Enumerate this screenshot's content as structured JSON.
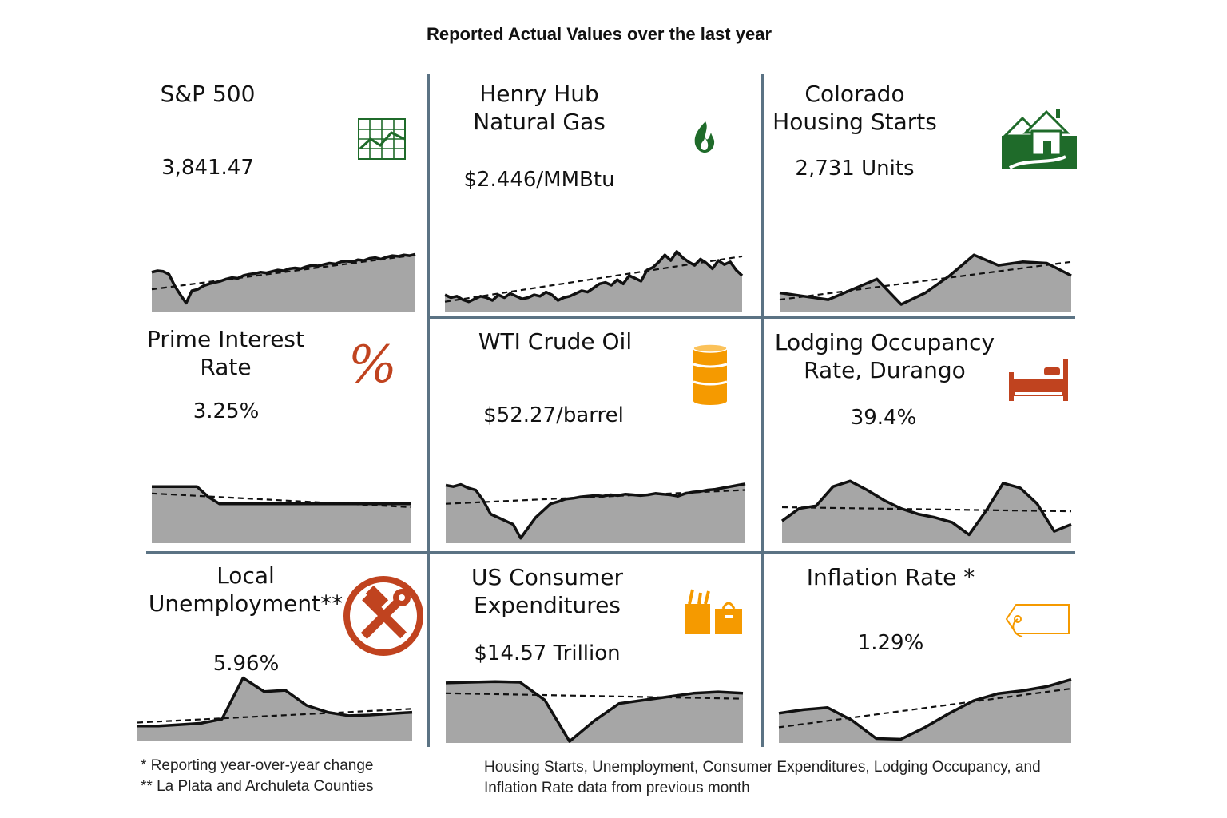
{
  "title": "Reported Actual Values over the last year",
  "colors": {
    "area": "#a6a6a6",
    "line": "#111111",
    "divider": "#5b7384",
    "green": "#1f6b2a",
    "rust": "#c0431f",
    "orange": "#f59a00"
  },
  "panels": [
    {
      "title": "S&P 500",
      "value": "3,841.47",
      "icon": "line-chart-icon",
      "chart_data": {
        "type": "area",
        "values": [
          55,
          57,
          56,
          52,
          35,
          22,
          10,
          28,
          30,
          35,
          38,
          40,
          42,
          45,
          47,
          46,
          50,
          52,
          53,
          55,
          54,
          56,
          58,
          57,
          60,
          61,
          60,
          63,
          65,
          64,
          66,
          68,
          67,
          70,
          71,
          70,
          73,
          72,
          75,
          76,
          74,
          77,
          79,
          78,
          80,
          79,
          81
        ],
        "trend": [
          30,
          80
        ]
      }
    },
    {
      "title": "Henry Hub\nNatural Gas",
      "value": "$2.446/MMBtu",
      "icon": "flame-icon",
      "chart_data": {
        "type": "area",
        "values": [
          22,
          18,
          20,
          15,
          12,
          16,
          20,
          18,
          14,
          22,
          18,
          24,
          20,
          16,
          18,
          22,
          20,
          26,
          22,
          14,
          18,
          20,
          24,
          28,
          26,
          32,
          38,
          40,
          36,
          44,
          38,
          50,
          46,
          42,
          58,
          62,
          70,
          80,
          72,
          85,
          76,
          70,
          65,
          74,
          68,
          60,
          72,
          66,
          70,
          58,
          50
        ],
        "trend": [
          12,
          78
        ]
      }
    },
    {
      "title": "Colorado\nHousing Starts",
      "value": "2,731 Units",
      "icon": "houses-icon",
      "chart_data": {
        "type": "area",
        "values": [
          25,
          20,
          15,
          30,
          45,
          8,
          25,
          50,
          80,
          65,
          70,
          68,
          50
        ],
        "trend": [
          15,
          70
        ]
      }
    },
    {
      "title": "Prime Interest\nRate",
      "value": "3.25%",
      "icon": "percent-icon",
      "chart_data": {
        "type": "area",
        "values": [
          80,
          80,
          80,
          80,
          80,
          65,
          55,
          55,
          55,
          55,
          55,
          55,
          55,
          55,
          55,
          55,
          55,
          55,
          55,
          55,
          55,
          55,
          55,
          55
        ],
        "trend": [
          70,
          50
        ]
      }
    },
    {
      "title": "WTI Crude Oil",
      "value": "$52.27/barrel",
      "icon": "oil-barrel-icon",
      "chart_data": {
        "type": "area",
        "values": [
          82,
          80,
          83,
          78,
          75,
          60,
          40,
          35,
          30,
          25,
          5,
          20,
          35,
          45,
          55,
          58,
          62,
          63,
          65,
          66,
          67,
          66,
          68,
          67,
          69,
          68,
          67,
          68,
          70,
          69,
          68,
          66,
          70,
          72,
          73,
          75,
          76,
          78,
          80,
          82,
          84
        ],
        "trend": [
          55,
          75
        ]
      }
    },
    {
      "title": "Lodging Occupancy\nRate, Durango",
      "value": "39.4%",
      "icon": "bed-icon",
      "chart_data": {
        "type": "area",
        "values": [
          30,
          48,
          52,
          80,
          88,
          75,
          60,
          48,
          40,
          35,
          28,
          10,
          45,
          85,
          78,
          55,
          15,
          25
        ],
        "trend": [
          50,
          44
        ]
      }
    },
    {
      "title": "Local\nUnemployment**",
      "value": "5.96%",
      "icon": "tools-icon",
      "chart_data": {
        "type": "area",
        "values": [
          20,
          20,
          22,
          24,
          30,
          90,
          70,
          72,
          50,
          40,
          35,
          36,
          38,
          40
        ],
        "trend": [
          25,
          45
        ]
      }
    },
    {
      "title": "US Consumer\nExpenditures",
      "value": "$14.57 Trillion",
      "icon": "shopping-bags-icon",
      "chart_data": {
        "type": "area",
        "values": [
          85,
          86,
          87,
          86,
          60,
          0,
          30,
          55,
          60,
          65,
          70,
          72,
          70
        ],
        "trend": [
          70,
          62
        ]
      }
    },
    {
      "title": "Inflation Rate *",
      "value": "1.29%",
      "icon": "price-tag-icon",
      "chart_data": {
        "type": "area",
        "values": [
          40,
          45,
          48,
          30,
          4,
          3,
          20,
          40,
          58,
          68,
          72,
          78,
          88
        ],
        "trend": [
          20,
          75
        ]
      }
    }
  ],
  "notes": {
    "left": "* Reporting year-over-year change\n** La Plata and Archuleta Counties",
    "right": "Housing Starts, Unemployment, Consumer Expenditures, Lodging Occupancy, and\nInflation Rate data from previous month"
  }
}
